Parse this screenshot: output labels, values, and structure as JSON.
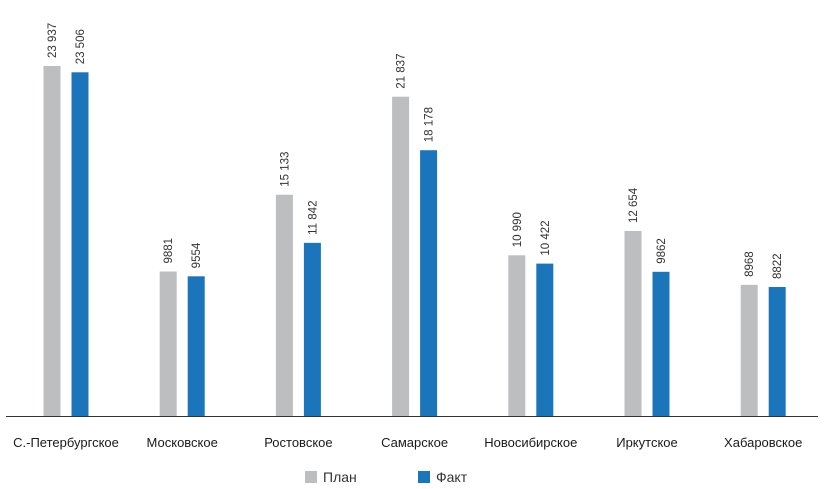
{
  "chart_data": {
    "type": "bar",
    "categories": [
      "С.-Петербургское",
      "Московское",
      "Ростовское",
      "Самарское",
      "Новосибирское",
      "Иркутское",
      "Хабаровское"
    ],
    "series": [
      {
        "name": "План",
        "color": "#bcbec0",
        "values": [
          23937,
          9881,
          15133,
          21837,
          10990,
          12654,
          8968
        ],
        "labels": [
          "23 937",
          "9881",
          "15 133",
          "21 837",
          "10 990",
          "12 654",
          "8968"
        ]
      },
      {
        "name": "Факт",
        "color": "#1b75bb",
        "values": [
          23506,
          9554,
          11842,
          18178,
          10422,
          9862,
          8822
        ],
        "labels": [
          "23 506",
          "9554",
          "11 842",
          "18 178",
          "10 422",
          "9862",
          "8822"
        ]
      }
    ],
    "ylim": [
      0,
      23937
    ],
    "grid": false,
    "legend_position": "bottom-center",
    "axis_color": "#333333"
  }
}
